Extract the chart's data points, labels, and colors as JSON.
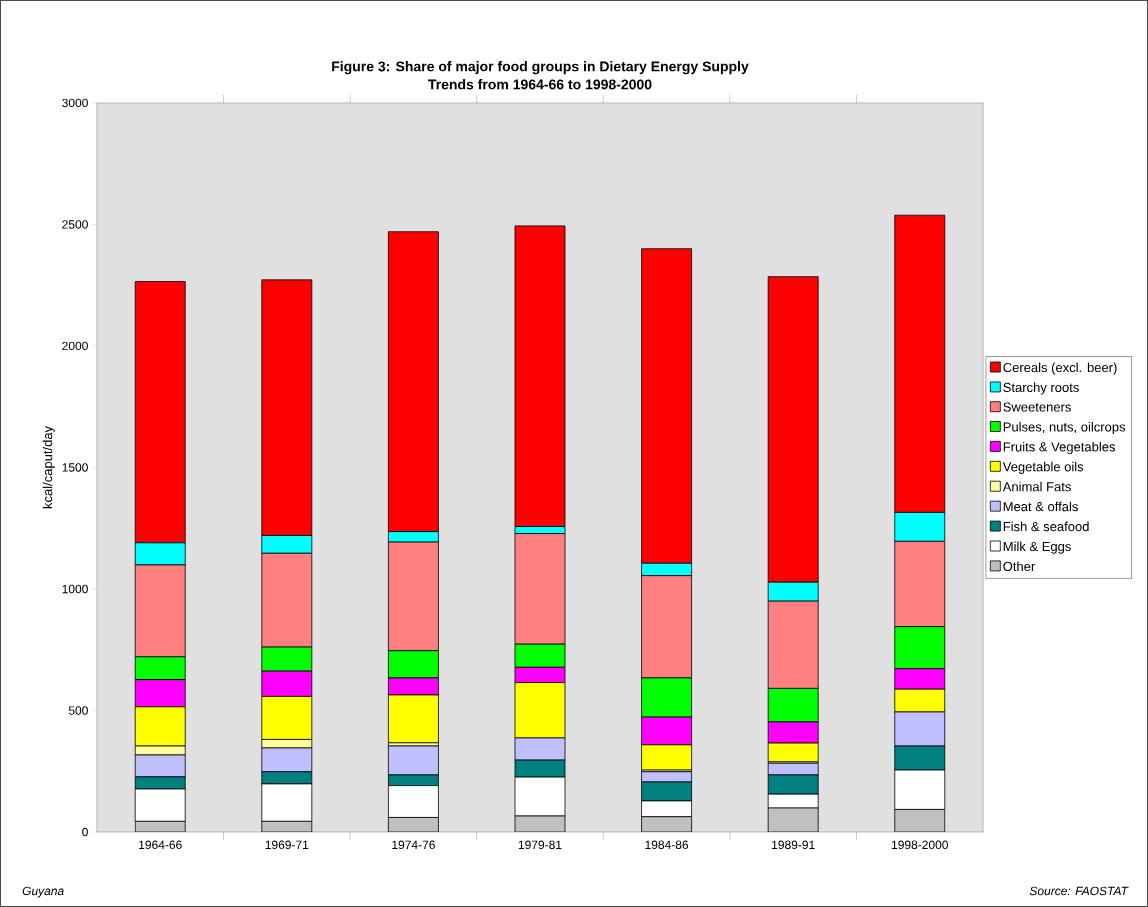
{
  "chart_data": {
    "type": "bar",
    "stacked": true,
    "title": "Figure 3: Share of major food groups in Dietary Energy Supply",
    "subtitle": "Trends from 1964-66 to 1998-2000",
    "ylabel": "kcal/caput/day",
    "categories": [
      "1964-66",
      "1969-71",
      "1974-76",
      "1979-81",
      "1984-86",
      "1989-91",
      "1998-2000"
    ],
    "series": [
      {
        "name": "Other",
        "color": "#c0c0c0",
        "values": [
          44,
          44,
          60,
          66,
          63,
          99,
          93
        ]
      },
      {
        "name": "Milk & Eggs",
        "color": "#ffffff",
        "values": [
          133,
          154,
          131,
          160,
          65,
          57,
          162
        ]
      },
      {
        "name": "Fish & seafood",
        "color": "#008080",
        "values": [
          50,
          50,
          44,
          70,
          78,
          79,
          99
        ]
      },
      {
        "name": "Meat & offals",
        "color": "#c0c0ff",
        "values": [
          90,
          98,
          119,
          91,
          42,
          48,
          140
        ]
      },
      {
        "name": "Animal Fats",
        "color": "#ffff99",
        "values": [
          37,
          35,
          13,
          null,
          7,
          6,
          null
        ]
      },
      {
        "name": "Vegetable oils",
        "color": "#ffff00",
        "values": [
          161,
          177,
          197,
          228,
          104,
          77,
          94
        ]
      },
      {
        "name": "Fruits & Vegetables",
        "color": "#ff00ff",
        "values": [
          112,
          104,
          70,
          63,
          114,
          87,
          84
        ]
      },
      {
        "name": "Pulses, nuts, oilcrops",
        "color": "#00ff00",
        "values": [
          94,
          99,
          112,
          95,
          161,
          138,
          173
        ]
      },
      {
        "name": "Sweeteners",
        "color": "#ff8080",
        "values": [
          378,
          386,
          447,
          455,
          421,
          359,
          351
        ]
      },
      {
        "name": "Starchy roots",
        "color": "#00ffff",
        "values": [
          91,
          73,
          43,
          29,
          51,
          78,
          119
        ]
      },
      {
        "name": "Cereals (excl. beer)",
        "color": "#ff0000",
        "values": [
          1075,
          1052,
          1234,
          1237,
          1294,
          1257,
          1223
        ]
      }
    ],
    "ylim": [
      0,
      3000
    ],
    "yticks": [
      0,
      500,
      1000,
      1500,
      2000,
      2500,
      3000
    ],
    "legend": "right",
    "annotations": [
      "Guyana",
      "Source: FAOSTAT"
    ]
  }
}
